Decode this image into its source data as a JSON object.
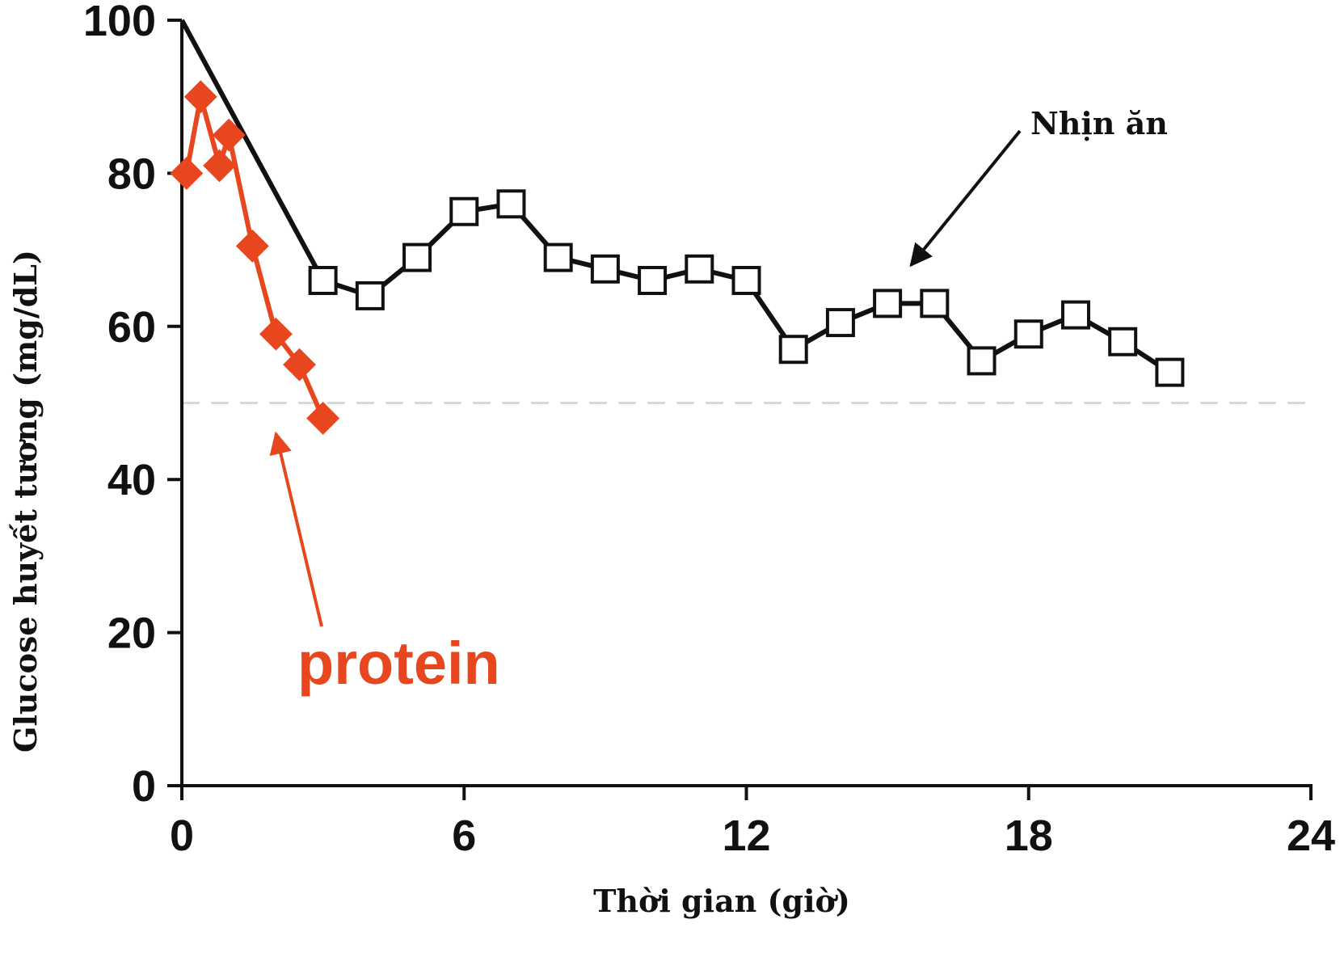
{
  "chart_data": {
    "type": "line",
    "title": "",
    "xlabel": "Thời gian (giờ)",
    "ylabel": "Glucose huyết tương (mg/dL)",
    "xlim": [
      0,
      24
    ],
    "ylim": [
      0,
      100
    ],
    "x_ticks": [
      "0",
      "6",
      "12",
      "18",
      "24"
    ],
    "y_ticks": [
      "0",
      "20",
      "40",
      "60",
      "80",
      "100"
    ],
    "reference_line": {
      "y": 50,
      "style": "dashed",
      "color": "#d9d9d9"
    },
    "series": [
      {
        "marker": "open-square",
        "color": "#111111",
        "x": [
          0,
          3,
          4,
          5,
          6,
          7,
          8,
          9,
          10,
          11,
          12,
          13,
          14,
          15,
          16,
          17,
          18,
          19,
          20,
          21
        ],
        "y": [
          100,
          66,
          64,
          69,
          75,
          76,
          69,
          67.5,
          66,
          67.5,
          66,
          57,
          60.5,
          63,
          63,
          55.5,
          59,
          61.5,
          58,
          54
        ]
      },
      {
        "marker": "filled-diamond",
        "color": "#e8461e",
        "x": [
          0.1,
          0.4,
          0.8,
          1.0,
          1.5,
          2.0,
          2.5,
          3.0
        ],
        "y": [
          80,
          90,
          81,
          85,
          70.5,
          59,
          55,
          48
        ]
      }
    ],
    "annotations": [
      {
        "text": "Nhịn ăn",
        "color": "#111111",
        "arrow_to": [
          15.5,
          68
        ]
      },
      {
        "text": "protein",
        "color": "#e8461e",
        "arrow_to": [
          2.0,
          46
        ]
      }
    ]
  }
}
